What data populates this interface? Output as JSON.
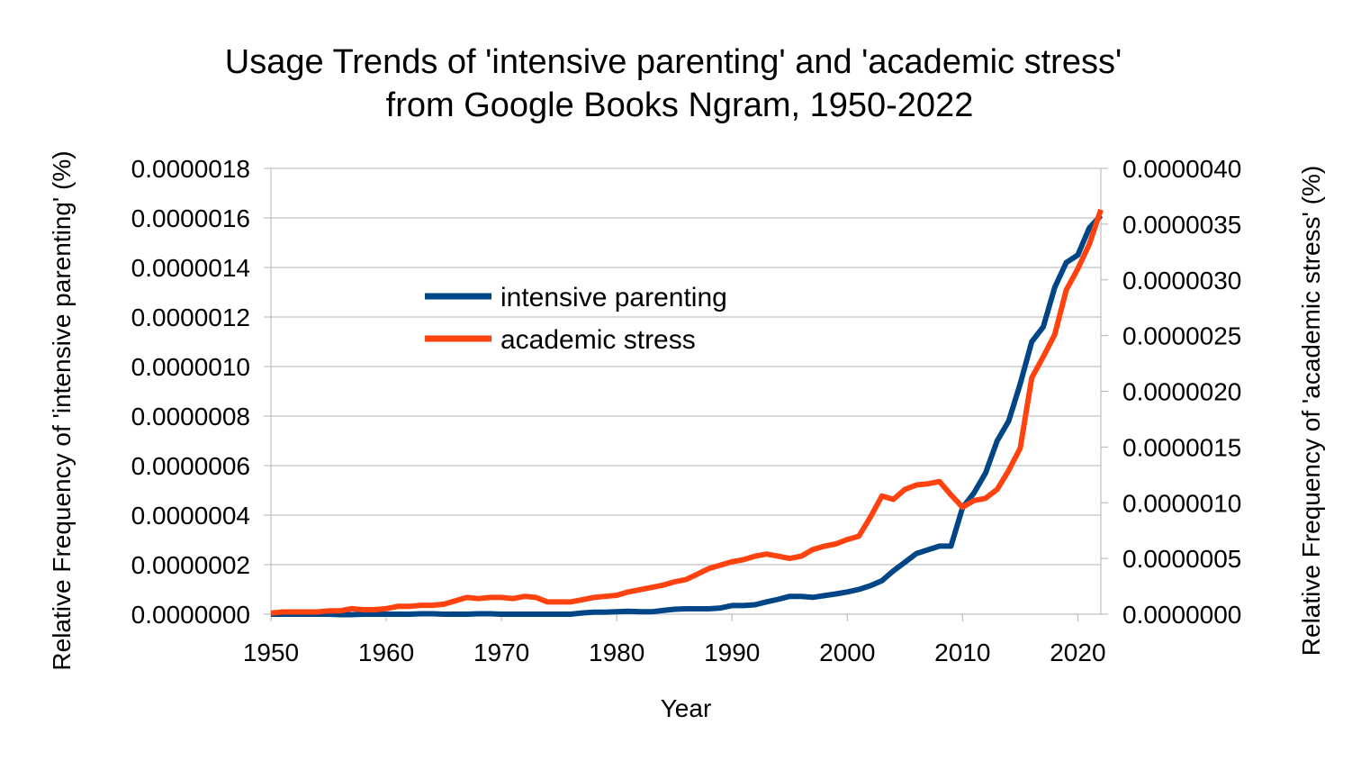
{
  "chart_data": {
    "type": "line",
    "title_line1": "Usage Trends of 'intensive parenting' and 'academic stress'",
    "title_line2": "from Google Books Ngram, 1950-2022",
    "xlabel": "Year",
    "ylabel_left": "Relative Frequency of 'intensive parenting' (%)",
    "ylabel_right": "Relative Frequency of 'academic stress' (%)",
    "xlim": [
      1950,
      2022
    ],
    "x_ticks": [
      1950,
      1960,
      1970,
      1980,
      1990,
      2000,
      2010,
      2020
    ],
    "y_left_lim": [
      0,
      1.8e-06
    ],
    "y_left_ticks": [
      "0.0000000",
      "0.0000002",
      "0.0000004",
      "0.0000006",
      "0.0000008",
      "0.0000010",
      "0.0000012",
      "0.0000014",
      "0.0000016",
      "0.0000018"
    ],
    "y_right_lim": [
      0,
      4e-06
    ],
    "y_right_ticks": [
      "0.0000000",
      "0.0000005",
      "0.0000010",
      "0.0000015",
      "0.0000020",
      "0.0000025",
      "0.0000030",
      "0.0000035",
      "0.0000040"
    ],
    "grid": true,
    "legend_position": "upper-left-inside",
    "x": [
      1950,
      1951,
      1952,
      1953,
      1954,
      1955,
      1956,
      1957,
      1958,
      1959,
      1960,
      1961,
      1962,
      1963,
      1964,
      1965,
      1966,
      1967,
      1968,
      1969,
      1970,
      1971,
      1972,
      1973,
      1974,
      1975,
      1976,
      1977,
      1978,
      1979,
      1980,
      1981,
      1982,
      1983,
      1984,
      1985,
      1986,
      1987,
      1988,
      1989,
      1990,
      1991,
      1992,
      1993,
      1994,
      1995,
      1996,
      1997,
      1998,
      1999,
      2000,
      2001,
      2002,
      2003,
      2004,
      2005,
      2006,
      2007,
      2008,
      2009,
      2010,
      2011,
      2012,
      2013,
      2014,
      2015,
      2016,
      2017,
      2018,
      2019,
      2020,
      2021,
      2022
    ],
    "series": [
      {
        "name": "intensive parenting",
        "axis": "left",
        "color": "#004586",
        "values": [
          0.0,
          0.0,
          0.0,
          0.0,
          0.0,
          0.0,
          -2e-09,
          -2e-09,
          0.0,
          0.0,
          0.0,
          0.0,
          0.0,
          2e-09,
          2e-09,
          0.0,
          0.0,
          0.0,
          2e-09,
          2e-09,
          0.0,
          0.0,
          0.0,
          0.0,
          0.0,
          0.0,
          0.0,
          5e-09,
          8e-09,
          8e-09,
          1e-08,
          1.2e-08,
          1e-08,
          1e-08,
          1.5e-08,
          2e-08,
          2.2e-08,
          2.2e-08,
          2.2e-08,
          2.5e-08,
          3.5e-08,
          3.5e-08,
          3.8e-08,
          5e-08,
          6e-08,
          7.2e-08,
          7.2e-08,
          6.8e-08,
          7.5e-08,
          8.2e-08,
          9e-08,
          1e-07,
          1.15e-07,
          1.35e-07,
          1.75e-07,
          2.1e-07,
          2.45e-07,
          2.6e-07,
          2.75e-07,
          2.75e-07,
          4.3e-07,
          4.9e-07,
          5.7e-07,
          7e-07,
          7.8e-07,
          9.3e-07,
          1.1e-06,
          1.16e-06,
          1.32e-06,
          1.42e-06,
          1.45e-06,
          1.56e-06,
          1.61e-06
        ]
      },
      {
        "name": "academic stress",
        "axis": "right",
        "color": "#ff420e",
        "values": [
          1e-08,
          2e-08,
          2e-08,
          2e-08,
          2e-08,
          3e-08,
          3e-08,
          5e-08,
          4e-08,
          4e-08,
          5e-08,
          7e-08,
          7e-08,
          8e-08,
          8e-08,
          9e-08,
          1.2e-07,
          1.5e-07,
          1.4e-07,
          1.5e-07,
          1.5e-07,
          1.4e-07,
          1.6e-07,
          1.5e-07,
          1.1e-07,
          1.1e-07,
          1.1e-07,
          1.3e-07,
          1.5e-07,
          1.6e-07,
          1.7e-07,
          2e-07,
          2.2e-07,
          2.4e-07,
          2.6e-07,
          2.9e-07,
          3.1e-07,
          3.6e-07,
          4.1e-07,
          4.4e-07,
          4.7e-07,
          4.9e-07,
          5.2e-07,
          5.4e-07,
          5.2e-07,
          5e-07,
          5.2e-07,
          5.8e-07,
          6.1e-07,
          6.3e-07,
          6.7e-07,
          7e-07,
          8.7e-07,
          1.06e-06,
          1.03e-06,
          1.12e-06,
          1.16e-06,
          1.17e-06,
          1.19e-06,
          1.07e-06,
          9.6e-07,
          1.02e-06,
          1.04e-06,
          1.12e-06,
          1.29e-06,
          1.49e-06,
          2.12e-06,
          2.31e-06,
          2.51e-06,
          2.91e-06,
          3.1e-06,
          3.32e-06,
          3.63e-06
        ]
      }
    ]
  }
}
